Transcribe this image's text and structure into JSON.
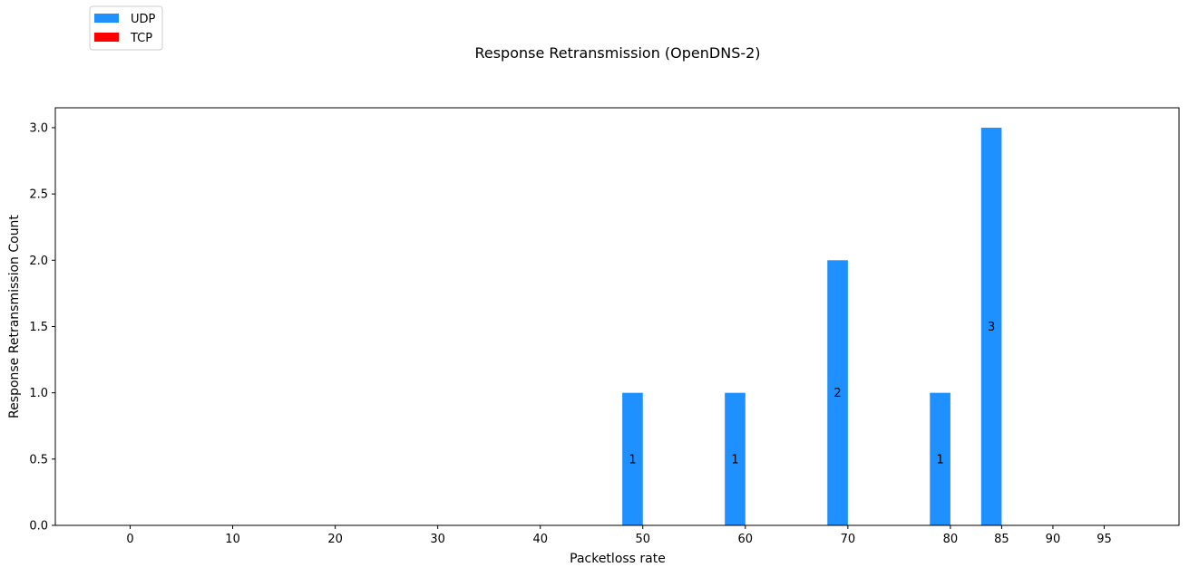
{
  "chart_data": {
    "type": "bar",
    "title": "Response Retransmission (OpenDNS-2)",
    "xlabel": "Packetloss rate",
    "ylabel": "Response Retransmission Count",
    "x_ticks": [
      0,
      10,
      20,
      30,
      40,
      50,
      60,
      70,
      80,
      85,
      90,
      95
    ],
    "x_tick_labels": [
      "0",
      "10",
      "20",
      "30",
      "40",
      "50",
      "60",
      "70",
      "80",
      "85",
      "90",
      "95"
    ],
    "xlim": [
      -7.3,
      102.3
    ],
    "ylim": [
      0,
      3.15
    ],
    "y_ticks": [
      0.0,
      0.5,
      1.0,
      1.5,
      2.0,
      2.5,
      3.0
    ],
    "y_tick_labels": [
      "0.0",
      "0.5",
      "1.0",
      "1.5",
      "2.0",
      "2.5",
      "3.0"
    ],
    "grid": false,
    "legend": {
      "placement": "top-left, outside plot"
    },
    "series": [
      {
        "name": "UDP",
        "color": "#1e90ff",
        "x": [
          0,
          10,
          20,
          30,
          40,
          50,
          60,
          70,
          80,
          85,
          90,
          95
        ],
        "values": [
          0,
          0,
          0,
          0,
          0,
          1,
          1,
          2,
          1,
          3,
          0,
          0
        ],
        "data_labels": [
          "",
          "",
          "",
          "",
          "",
          "1",
          "1",
          "2",
          "1",
          "3",
          "",
          ""
        ]
      },
      {
        "name": "TCP",
        "color": "#ff0000",
        "x": [
          0,
          10,
          20,
          30,
          40,
          50,
          60,
          70,
          80,
          85,
          90,
          95
        ],
        "values": [
          0,
          0,
          0,
          0,
          0,
          0,
          0,
          0,
          0,
          0,
          0,
          0
        ]
      }
    ]
  }
}
